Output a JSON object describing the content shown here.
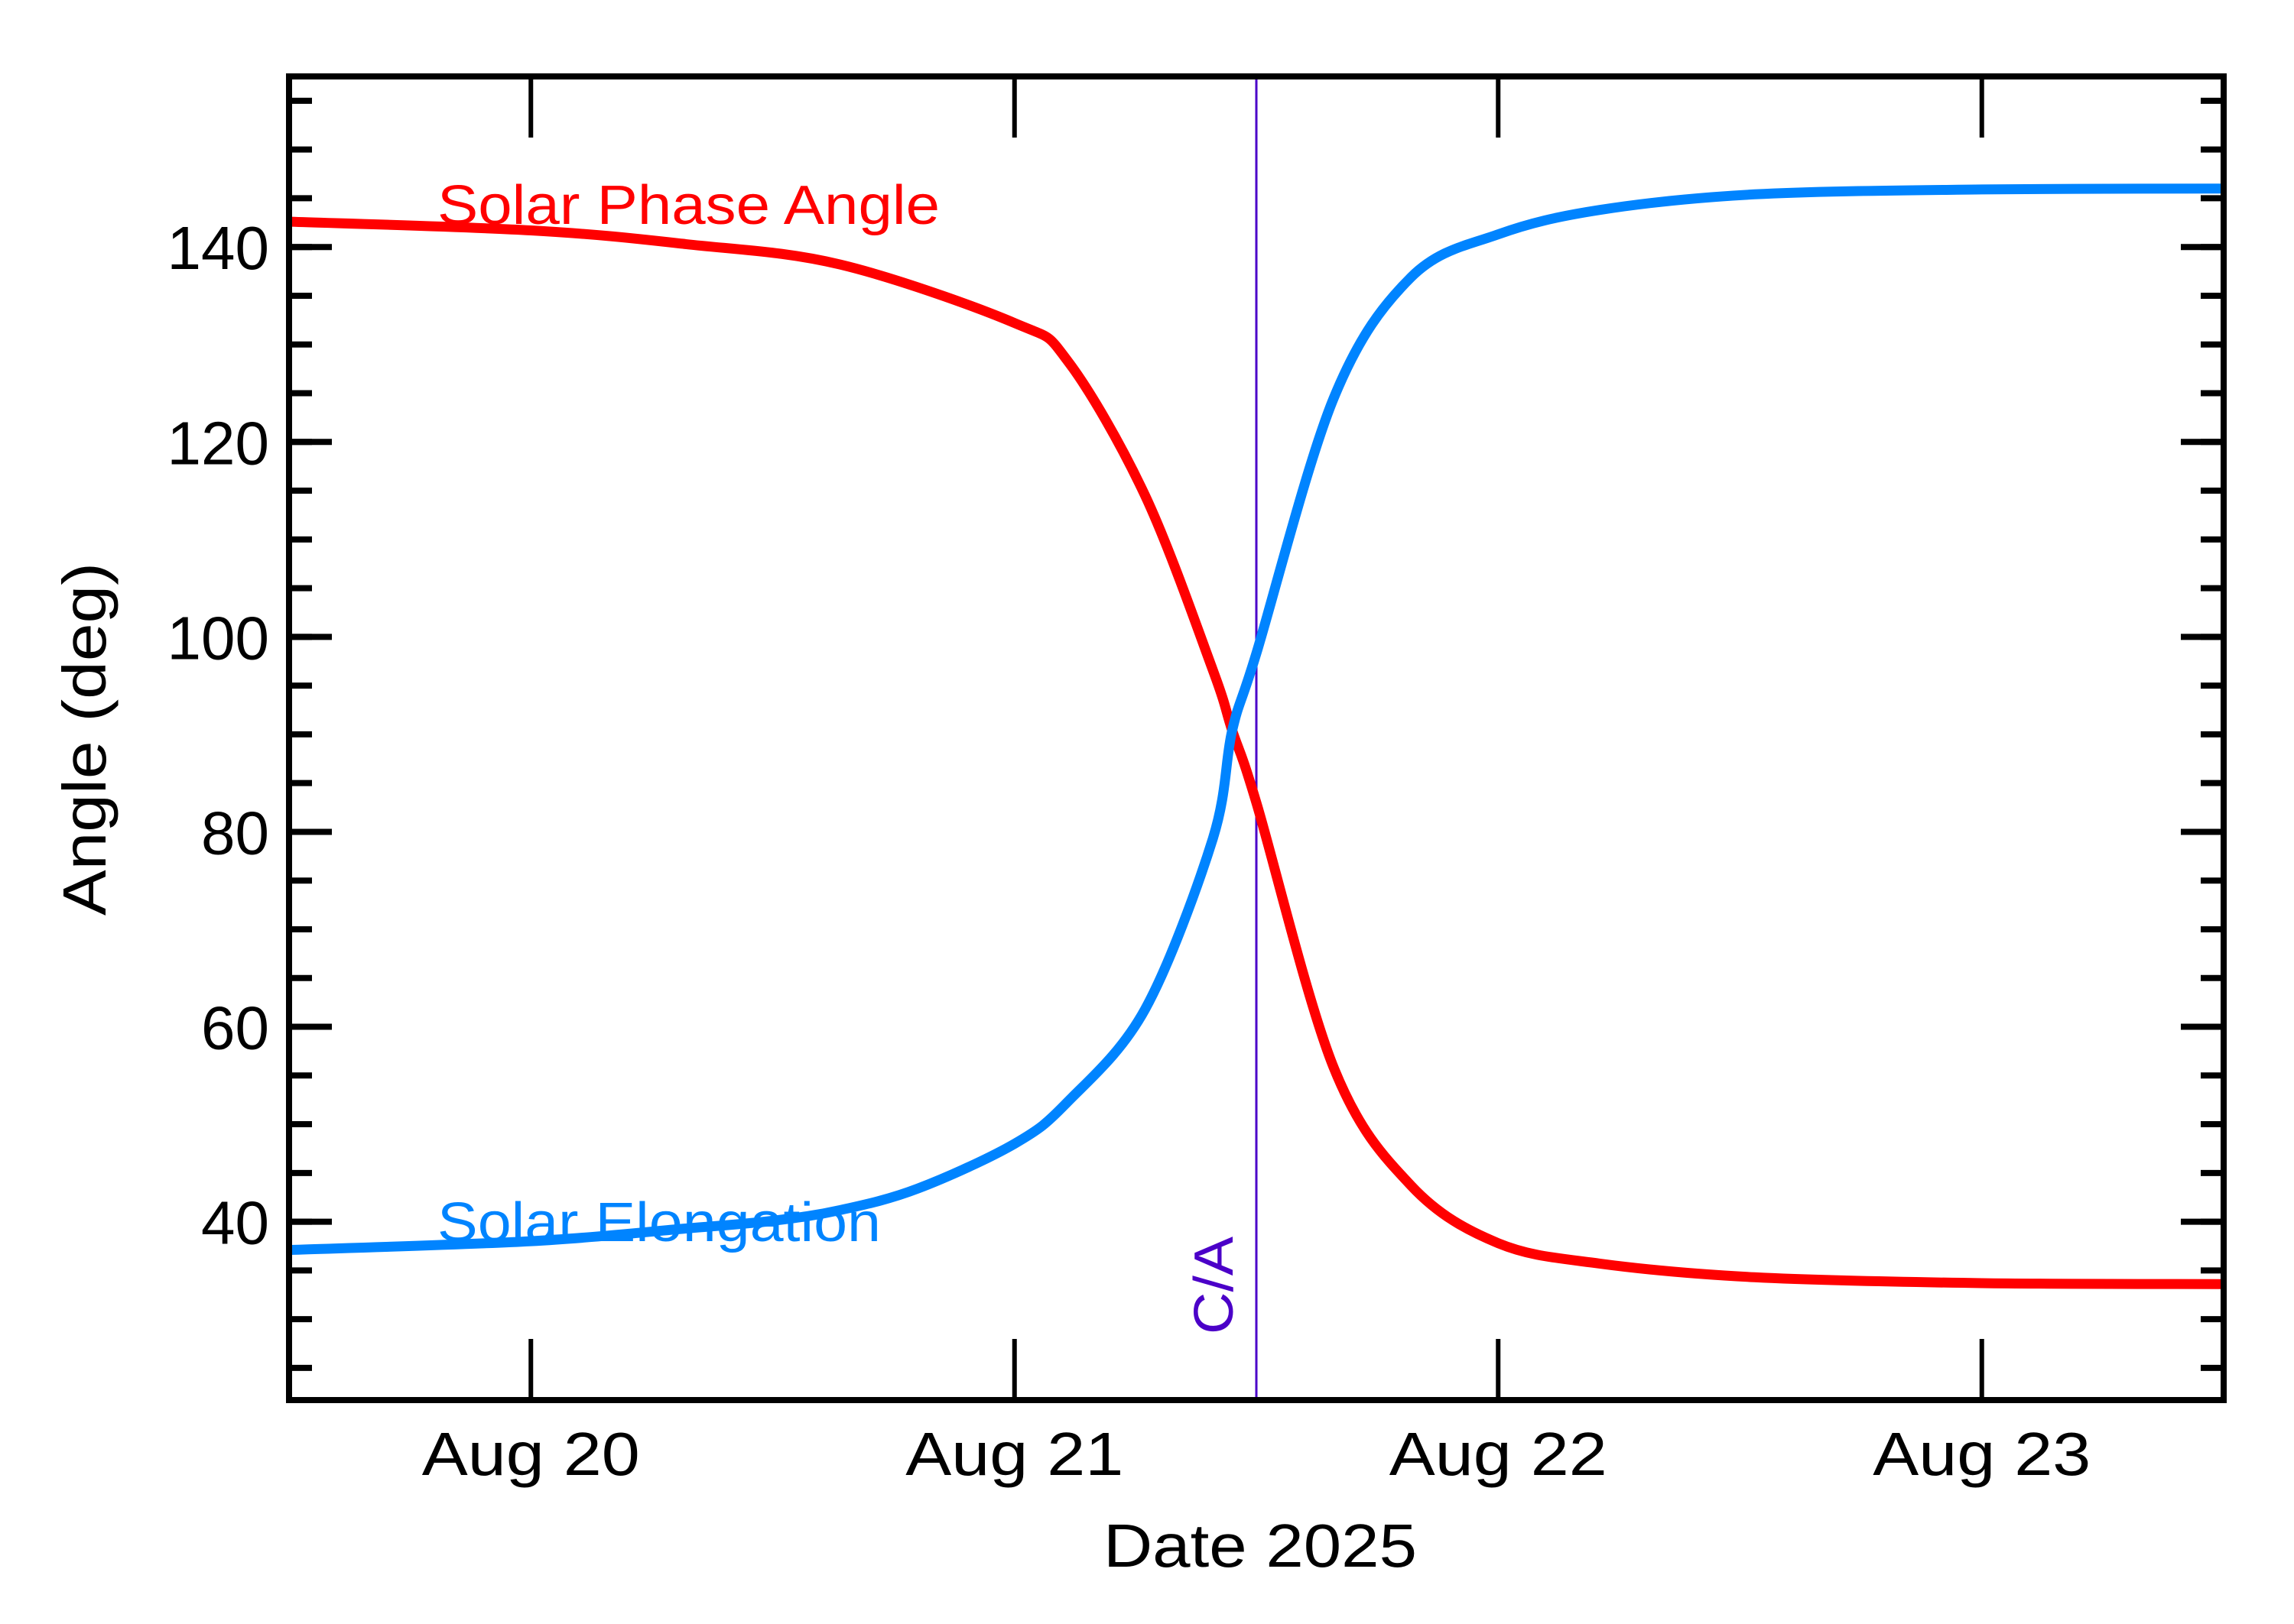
{
  "chart_data": {
    "type": "line",
    "title": "",
    "xlabel": "Date 2025",
    "ylabel": "Angle (deg)",
    "x_unit": "day of August 2025 (fractional)",
    "xlim": [
      19.5,
      23.5
    ],
    "ylim": [
      21.7,
      157.5
    ],
    "grid": false,
    "legend": "inline text labels",
    "x_ticks": [
      {
        "value": 20,
        "label": "Aug 20"
      },
      {
        "value": 21,
        "label": "Aug 21"
      },
      {
        "value": 22,
        "label": "Aug 22"
      },
      {
        "value": 23,
        "label": "Aug 23"
      }
    ],
    "y_ticks": [
      {
        "value": 40,
        "label": "40"
      },
      {
        "value": 60,
        "label": "60"
      },
      {
        "value": 80,
        "label": "80"
      },
      {
        "value": 100,
        "label": "100"
      },
      {
        "value": 120,
        "label": "120"
      },
      {
        "value": 140,
        "label": "140"
      }
    ],
    "y_minor_step": 5,
    "series": [
      {
        "name": "Solar Phase Angle",
        "color": "#FF0000",
        "x": [
          19.5,
          20.0,
          20.32,
          20.64,
          21.0,
          21.11,
          21.27,
          21.41,
          21.45,
          21.5,
          21.66,
          21.82,
          22.0,
          22.21,
          22.53,
          23.0,
          23.5
        ],
        "y": [
          142.6,
          141.7,
          140.3,
          138.2,
          132.2,
          128.3,
          114.5,
          96.6,
          90.4,
          83.0,
          55.8,
          43.7,
          37.8,
          35.7,
          34.3,
          33.7,
          33.6
        ]
      },
      {
        "name": "Solar Elongation",
        "color": "#0084FF",
        "x": [
          19.5,
          20.0,
          20.32,
          20.5,
          20.64,
          20.8,
          21.0,
          21.11,
          21.27,
          21.41,
          21.45,
          21.5,
          21.66,
          21.82,
          22.0,
          22.21,
          22.53,
          23.0,
          23.5
        ],
        "y": [
          37.1,
          38.0,
          39.3,
          40.1,
          41.2,
          43.4,
          48.0,
          52.3,
          61.8,
          79.3,
          90.4,
          98.3,
          124.5,
          136.9,
          141.3,
          143.8,
          145.4,
          145.9,
          146.0
        ]
      }
    ],
    "annotations": [
      {
        "type": "vline",
        "x": 21.5,
        "label": "C/A",
        "color": "#4B00C8"
      },
      {
        "type": "text",
        "text": "Solar Phase Angle",
        "x": 19.8,
        "y": 142.5,
        "color": "#FF0000"
      },
      {
        "type": "text",
        "text": "Solar Elongation",
        "x": 19.8,
        "y": 37.0,
        "color": "#0084FF"
      }
    ]
  },
  "labels": {
    "xlabel": "Date 2025",
    "ylabel": "Angle (deg)",
    "phase_label": "Solar Phase Angle",
    "elongation_label": "Solar Elongation",
    "ca_label": "C/A"
  }
}
